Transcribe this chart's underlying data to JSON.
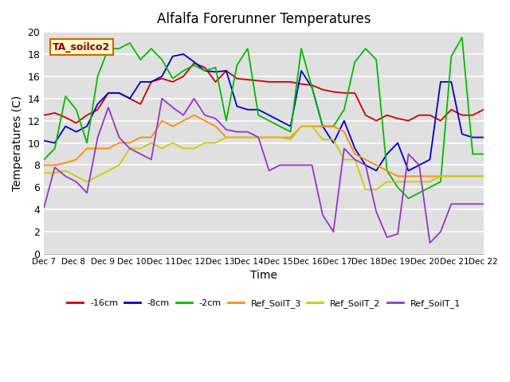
{
  "title": "Alfalfa Forerunner Temperatures",
  "xlabel": "Time",
  "ylabel": "Temperatures (C)",
  "annotation": "TA_soilco2",
  "ylim": [
    0,
    20
  ],
  "x_labels": [
    "Dec 7",
    "Dec 8",
    "Dec 9",
    "Dec 10",
    "Dec 11",
    "Dec 12",
    "Dec 13",
    "Dec 14",
    "Dec 15",
    "Dec 16",
    "Dec 17",
    "Dec 18",
    "Dec 19",
    "Dec 20",
    "Dec 21",
    "Dec 22"
  ],
  "series": {
    "neg16cm": {
      "color": "#cc0000",
      "label": "-16cm",
      "values": [
        12.5,
        12.7,
        12.3,
        11.8,
        12.5,
        13.0,
        14.5,
        14.5,
        14.0,
        13.5,
        15.5,
        15.8,
        15.5,
        16.0,
        17.2,
        16.8,
        15.5,
        16.5,
        15.8,
        15.7,
        15.6,
        15.5,
        15.5,
        15.5,
        15.3,
        15.2,
        14.8,
        14.6,
        14.5,
        14.5,
        12.5,
        12.0,
        12.5,
        12.2,
        12.0,
        12.5,
        12.5,
        12.0,
        13.0,
        12.5,
        12.5,
        13.0
      ]
    },
    "neg8cm": {
      "color": "#0000cc",
      "label": "-8cm",
      "values": [
        10.2,
        10.0,
        11.5,
        11.0,
        11.5,
        13.5,
        14.5,
        14.5,
        14.0,
        15.5,
        15.5,
        16.0,
        17.8,
        18.0,
        17.3,
        16.5,
        16.4,
        16.5,
        13.3,
        13.0,
        13.0,
        12.5,
        12.0,
        11.5,
        16.5,
        15.0,
        11.5,
        10.0,
        12.0,
        9.5,
        8.0,
        7.5,
        9.0,
        10.0,
        7.5,
        8.0,
        8.5,
        15.5,
        15.5,
        10.8,
        10.5,
        10.5
      ]
    },
    "neg2cm": {
      "color": "#00bb00",
      "label": "-2cm",
      "values": [
        8.5,
        9.5,
        14.2,
        13.0,
        10.0,
        16.0,
        18.5,
        18.5,
        19.0,
        17.5,
        18.5,
        17.5,
        15.8,
        16.5,
        17.0,
        16.5,
        16.8,
        12.0,
        17.0,
        18.5,
        12.5,
        12.0,
        11.5,
        11.0,
        18.5,
        15.0,
        11.5,
        11.5,
        13.0,
        17.3,
        18.5,
        17.5,
        7.5,
        6.0,
        5.0,
        5.5,
        6.0,
        6.5,
        17.8,
        19.5,
        9.0,
        9.0
      ]
    },
    "ref_soilt3": {
      "color": "#ff8c00",
      "label": "Ref_SoilT_3",
      "values": [
        8.0,
        8.0,
        8.2,
        8.5,
        9.5,
        9.5,
        9.5,
        10.0,
        10.0,
        10.5,
        10.5,
        12.0,
        11.5,
        12.0,
        12.5,
        12.0,
        11.5,
        10.5,
        10.5,
        10.5,
        10.5,
        10.5,
        10.5,
        10.5,
        11.5,
        11.5,
        11.5,
        11.5,
        11.0,
        9.0,
        8.5,
        8.0,
        7.5,
        7.0,
        7.0,
        7.0,
        7.0,
        7.0,
        7.0,
        7.0,
        7.0,
        7.0
      ]
    },
    "ref_soilt2": {
      "color": "#cccc00",
      "label": "Ref_SoilT_2",
      "values": [
        7.3,
        7.3,
        7.5,
        7.0,
        6.5,
        7.0,
        7.5,
        8.0,
        9.5,
        9.5,
        10.0,
        9.5,
        10.0,
        9.5,
        9.5,
        10.0,
        10.0,
        10.5,
        10.5,
        10.5,
        10.5,
        10.5,
        10.5,
        10.3,
        11.5,
        11.5,
        10.3,
        10.3,
        8.5,
        8.5,
        5.8,
        5.8,
        6.5,
        6.5,
        6.5,
        6.5,
        6.5,
        7.0,
        7.0,
        7.0,
        7.0,
        7.0
      ]
    },
    "ref_soilt1": {
      "color": "#9933cc",
      "label": "Ref_SoilT_1",
      "values": [
        4.2,
        7.8,
        7.0,
        6.5,
        5.5,
        10.5,
        13.2,
        10.5,
        9.5,
        9.0,
        8.5,
        14.0,
        13.2,
        12.5,
        14.0,
        12.5,
        12.2,
        11.2,
        11.0,
        11.0,
        10.5,
        7.5,
        8.0,
        8.0,
        8.0,
        8.0,
        3.5,
        2.0,
        9.5,
        8.5,
        8.0,
        3.8,
        1.5,
        1.8,
        9.0,
        8.0,
        1.0,
        2.0,
        4.5,
        4.5,
        4.5,
        4.5
      ]
    }
  }
}
